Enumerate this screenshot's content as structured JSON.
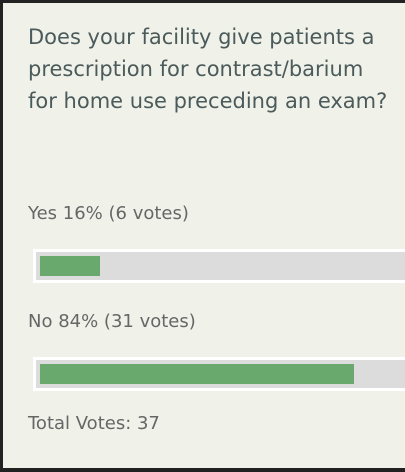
{
  "poll": {
    "question": "Does your facility give patients a prescription for contrast/barium for home use preceding an exam?",
    "options": [
      {
        "text": "Yes 16% (6 votes)",
        "percent": 16
      },
      {
        "text": "No 84% (31 votes)",
        "percent": 84
      }
    ],
    "total": "Total Votes: 37"
  }
}
